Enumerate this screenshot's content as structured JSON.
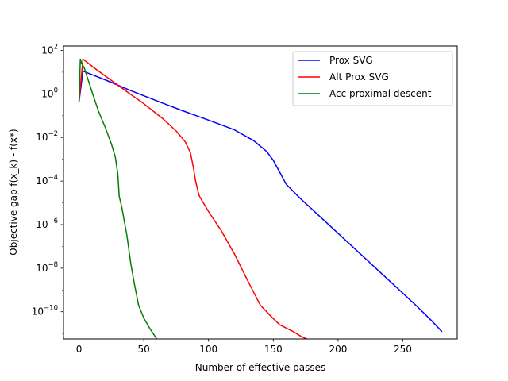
{
  "chart_data": {
    "type": "line",
    "title": "",
    "xlabel": "Number of effective passes",
    "ylabel": "Objective gap f(x_k) - f(x*)",
    "xlim": [
      -12,
      292
    ],
    "ylim_log10": [
      -11.25,
      2.2
    ],
    "yscale": "log",
    "grid": false,
    "legend_position": "top-right",
    "x_ticks": [
      0,
      50,
      100,
      150,
      200,
      250
    ],
    "x_tick_labels": [
      "0",
      "50",
      "100",
      "150",
      "200",
      "250"
    ],
    "y_ticks_log10": [
      2,
      0,
      -2,
      -4,
      -6,
      -8,
      -10
    ],
    "y_tick_labels": [
      {
        "base": "10",
        "exp": "2"
      },
      {
        "base": "10",
        "exp": "0"
      },
      {
        "base": "10",
        "exp": "−2"
      },
      {
        "base": "10",
        "exp": "−4"
      },
      {
        "base": "10",
        "exp": "−6"
      },
      {
        "base": "10",
        "exp": "−8"
      },
      {
        "base": "10",
        "exp": "−10"
      }
    ],
    "series": [
      {
        "name": "Prox SVG",
        "color": "#0000ff",
        "points_log10": [
          [
            0,
            -0.35
          ],
          [
            3,
            1.05
          ],
          [
            20,
            0.65
          ],
          [
            40,
            0.15
          ],
          [
            60,
            -0.32
          ],
          [
            80,
            -0.77
          ],
          [
            100,
            -1.2
          ],
          [
            120,
            -1.65
          ],
          [
            135,
            -2.15
          ],
          [
            145,
            -2.65
          ],
          [
            150,
            -3.05
          ],
          [
            155,
            -3.6
          ],
          [
            160,
            -4.15
          ],
          [
            165,
            -4.45
          ],
          [
            170,
            -4.75
          ],
          [
            180,
            -5.3
          ],
          [
            200,
            -6.4
          ],
          [
            220,
            -7.5
          ],
          [
            240,
            -8.6
          ],
          [
            260,
            -9.7
          ],
          [
            272,
            -10.4
          ],
          [
            280,
            -10.9
          ]
        ]
      },
      {
        "name": "Alt Prox SVG",
        "color": "#ff0000",
        "points_log10": [
          [
            0,
            -0.35
          ],
          [
            3,
            1.6
          ],
          [
            15,
            1.05
          ],
          [
            30,
            0.4
          ],
          [
            50,
            -0.45
          ],
          [
            65,
            -1.15
          ],
          [
            75,
            -1.7
          ],
          [
            82,
            -2.2
          ],
          [
            86,
            -2.7
          ],
          [
            88,
            -3.3
          ],
          [
            90,
            -4.0
          ],
          [
            92,
            -4.5
          ],
          [
            93,
            -4.7
          ],
          [
            100,
            -5.4
          ],
          [
            110,
            -6.3
          ],
          [
            120,
            -7.35
          ],
          [
            130,
            -8.55
          ],
          [
            140,
            -9.7
          ],
          [
            148,
            -10.2
          ],
          [
            155,
            -10.6
          ],
          [
            165,
            -10.9
          ],
          [
            172,
            -11.15
          ],
          [
            178,
            -11.3
          ]
        ]
      },
      {
        "name": "Acc proximal descent",
        "color": "#008000",
        "points_log10": [
          [
            0,
            -0.35
          ],
          [
            1,
            1.6
          ],
          [
            2,
            1.4
          ],
          [
            4,
            1.2
          ],
          [
            10,
            0.1
          ],
          [
            15,
            -0.8
          ],
          [
            20,
            -1.5
          ],
          [
            25,
            -2.3
          ],
          [
            28,
            -2.9
          ],
          [
            30,
            -3.7
          ],
          [
            31,
            -4.7
          ],
          [
            33,
            -5.2
          ],
          [
            37,
            -6.5
          ],
          [
            40,
            -7.8
          ],
          [
            43,
            -8.8
          ],
          [
            46,
            -9.7
          ],
          [
            50,
            -10.3
          ],
          [
            55,
            -10.8
          ],
          [
            60,
            -11.25
          ]
        ]
      }
    ]
  }
}
